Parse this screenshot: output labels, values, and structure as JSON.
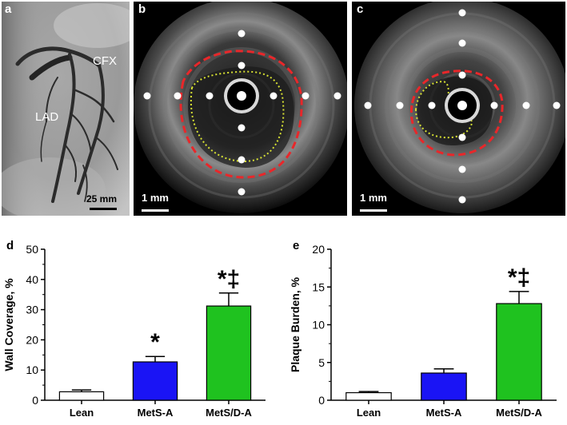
{
  "panels": {
    "a": {
      "letter": "a",
      "labels": {
        "cfx": "CFX",
        "lad": "LAD"
      },
      "scale_bar": "25 mm"
    },
    "b": {
      "letter": "b",
      "scale_bar": "1 mm"
    },
    "c": {
      "letter": "c",
      "scale_bar": "1 mm"
    },
    "d": {
      "letter": "d"
    },
    "e": {
      "letter": "e"
    }
  },
  "colors": {
    "lean": "#ffffff",
    "mets_a": "#1a14f5",
    "mets_d_a": "#1fc21f",
    "vessel_outline": "#e8272a",
    "lumen_outline": "#d6e033",
    "marker": "#ffffff"
  },
  "chart_data": [
    {
      "panel": "d",
      "type": "bar",
      "categories": [
        "Lean",
        "MetS-A",
        "MetS/D-A"
      ],
      "values": [
        2.8,
        12.7,
        31.2
      ],
      "errors": [
        0.6,
        1.8,
        4.3
      ],
      "significance": [
        "",
        "*",
        "*‡"
      ],
      "ylabel": "Wall Coverage, %",
      "ylim": [
        0,
        50
      ],
      "yticks": [
        0,
        10,
        20,
        30,
        40,
        50
      ]
    },
    {
      "panel": "e",
      "type": "bar",
      "categories": [
        "Lean",
        "MetS-A",
        "MetS/D-A"
      ],
      "values": [
        1.0,
        3.6,
        12.8
      ],
      "errors": [
        0.15,
        0.55,
        1.6
      ],
      "significance": [
        "",
        "",
        "*‡"
      ],
      "ylabel": "Plaque Burden, %",
      "ylim": [
        0,
        20
      ],
      "yticks": [
        0,
        5,
        10,
        15,
        20
      ]
    }
  ]
}
